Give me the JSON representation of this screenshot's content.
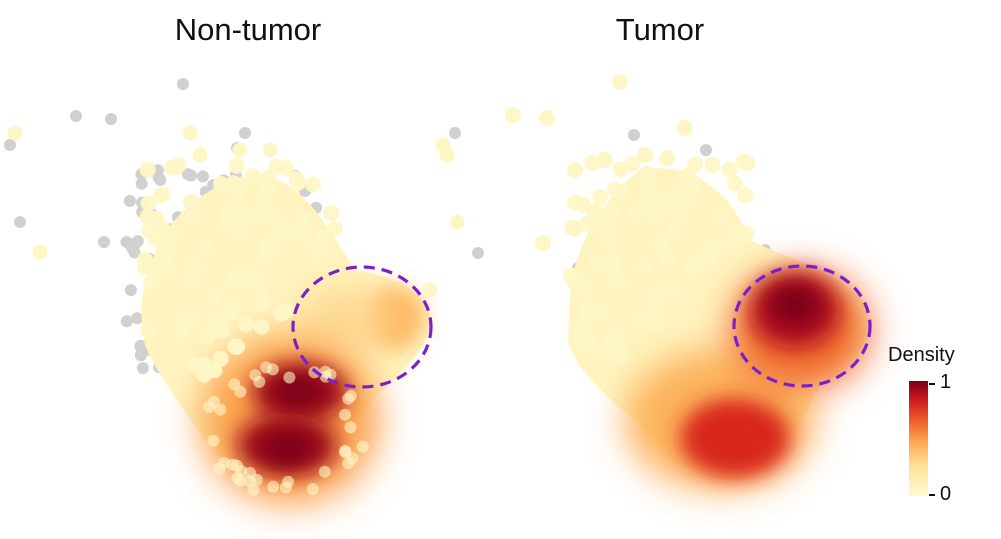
{
  "panels": [
    {
      "title": "Non-tumor",
      "hotspots": [
        {
          "x": -0.6,
          "y": -1.55,
          "weight": 1.0
        },
        {
          "x": -0.45,
          "y": -0.85,
          "weight": 1.0
        },
        {
          "x": 1.75,
          "y": 0.2,
          "weight": 0.45
        },
        {
          "x": 0.7,
          "y": 0.0,
          "weight": 0.2
        }
      ]
    },
    {
      "title": "Tumor",
      "hotspots": [
        {
          "x": 1.4,
          "y": 0.25,
          "weight": 1.0
        },
        {
          "x": 0.2,
          "y": -1.35,
          "weight": 0.75
        },
        {
          "x": -0.8,
          "y": -0.6,
          "weight": 0.3
        }
      ]
    }
  ],
  "legend": {
    "title": "Density",
    "max_label": "1",
    "min_label": "0",
    "colors": [
      "#fffbd2",
      "#fee39a",
      "#fdb057",
      "#f0602b",
      "#c8161e",
      "#7a0018"
    ]
  },
  "style": {
    "background_point_color": "#d0d0d0",
    "circle_color": "#7b1fc8"
  }
}
